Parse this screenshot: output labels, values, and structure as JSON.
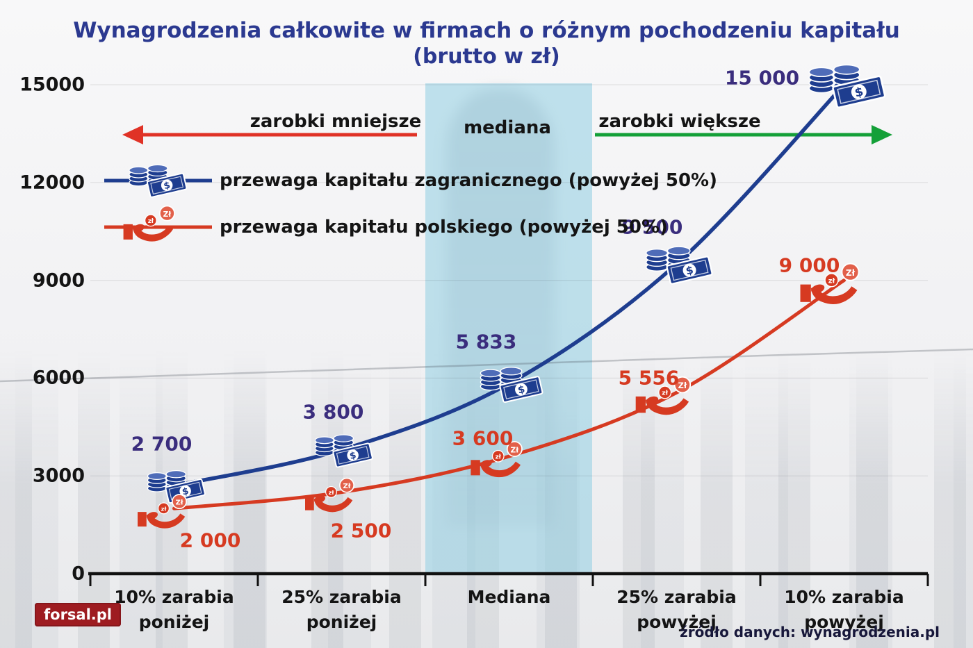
{
  "title": "Wynagrodzenia całkowite w firmach o różnym pochodzeniu kapitału",
  "subtitle": "(brutto w zł)",
  "annotations": {
    "smaller": "zarobki mniejsze",
    "median": "mediana",
    "larger": "zarobki większe"
  },
  "legend": {
    "foreign": "przewaga kapitału zagranicznego (powyżej 50%)",
    "polish": "przewaga kapitału polskiego (powyżej 50%)"
  },
  "icons": {
    "dollar_glyph": "$",
    "zloty_small_glyph": "zł",
    "zloty_big_glyph": "Zł",
    "money_icon": "coins-and-banknote",
    "hand_icon": "hand-with-coins"
  },
  "colors": {
    "title": "#2b3990",
    "foreign_series": "#1e3d8f",
    "foreign_value_label": "#3a2d7d",
    "polish_series": "#d63a21",
    "polish_value_label": "#d63a21",
    "arrow_smaller": "#e03226",
    "arrow_larger": "#14a038",
    "median_band": "#9fd2e3",
    "axis": "#111111",
    "text": "#141414",
    "logo_bg": "#9e1c21"
  },
  "chart_data": {
    "type": "line",
    "title": "Wynagrodzenia całkowite w firmach o różnym pochodzeniu kapitału (brutto w zł)",
    "categories": [
      "10% zarabia poniżej",
      "25% zarabia poniżej",
      "Mediana",
      "25% zarabia powyżej",
      "10% zarabia powyżej"
    ],
    "yticks": [
      0,
      3000,
      6000,
      9000,
      12000,
      15000
    ],
    "ytick_labels": [
      "0",
      "3000",
      "6000",
      "9000",
      "12000",
      "15000"
    ],
    "ylim": [
      0,
      15000
    ],
    "grid": false,
    "legend_position": "upper-left",
    "series": [
      {
        "name": "przewaga kapitału zagranicznego (powyżej 50%)",
        "color": "#1e3d8f",
        "values": [
          2700,
          3800,
          5833,
          9500,
          15000
        ],
        "value_labels": [
          "2 700",
          "3 800",
          "5 833",
          "9 500",
          "15 000"
        ],
        "label_offsets": [
          [
            -18,
            -60
          ],
          [
            -12,
            -55
          ],
          [
            -33,
            -60
          ],
          [
            -35,
            -53
          ],
          [
            -118,
            -10
          ]
        ],
        "icon": "money",
        "icon_scales": [
          1,
          1,
          1.08,
          1.15,
          1.32
        ]
      },
      {
        "name": "przewaga kapitału polskiego (powyżej 50%)",
        "color": "#d63a21",
        "values": [
          2000,
          2500,
          3600,
          5556,
          9000
        ],
        "value_labels": [
          "2 000",
          "2 500",
          "3 600",
          "5 556",
          "9 000"
        ],
        "label_offsets": [
          [
            52,
            46
          ],
          [
            28,
            55
          ],
          [
            -38,
            -26
          ],
          [
            -40,
            -21
          ],
          [
            -50,
            -22
          ]
        ],
        "icon": "hand",
        "icon_scales": [
          1,
          1,
          1.05,
          1.12,
          1.2
        ]
      }
    ]
  },
  "footer": {
    "logo_text": "forsal.pl",
    "source": "źródło danych: wynagrodzenia.pl"
  }
}
